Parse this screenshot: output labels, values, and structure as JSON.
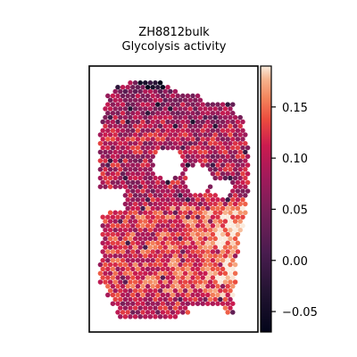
{
  "chart_data": {
    "type": "heatmap",
    "title": "ZH8812bulk\nGlycolysis activity",
    "title_lines": [
      "ZH8812bulk",
      "Glycolysis activity"
    ],
    "xlabel": "",
    "ylabel": "",
    "grid": false,
    "colormap": "rocket",
    "colorbar": {
      "vmin": -0.07,
      "vmax": 0.19,
      "ticks": [
        -0.05,
        0.0,
        0.05,
        0.1,
        0.15
      ],
      "tick_labels": [
        "−0.05",
        "0.00",
        "0.05",
        "0.10",
        "0.15"
      ]
    },
    "tissue_value_range": [
      -0.06,
      0.19
    ],
    "colors": {
      "low": "#03051a",
      "mid": "#a11a5b",
      "high": "#faebdd"
    }
  }
}
